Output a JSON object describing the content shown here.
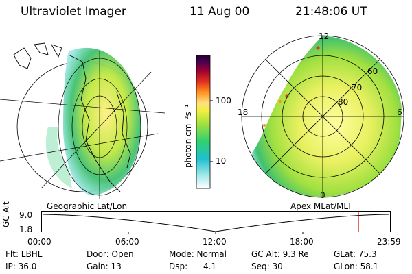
{
  "header": {
    "instrument": "Ultraviolet Imager",
    "date": "11 Aug 00",
    "time": "21:48:06 UT"
  },
  "left_panel": {
    "caption": "Geographic Lat/Lon"
  },
  "right_panel": {
    "caption": "Apex MLat/MLT",
    "mlt_labels": [
      "12",
      "18",
      "6",
      "0"
    ],
    "lat_labels": [
      "60",
      "70",
      "80"
    ]
  },
  "colorbar": {
    "unit_label": "photon cm⁻²s⁻¹",
    "ticks": [
      "100",
      "10"
    ],
    "colors": [
      "#ffffff",
      "#a0e8e8",
      "#20c0d0",
      "#30d070",
      "#a0e040",
      "#f0f040",
      "#ffe080",
      "#ff9020",
      "#e03020",
      "#a00030",
      "#500050",
      "#200030"
    ]
  },
  "altitude_plot": {
    "ylabel": "GC Alt",
    "y_ticks": [
      "9.0",
      "1.8"
    ],
    "x_ticks": [
      "00:00",
      "06:00",
      "12:00",
      "18:00",
      "23:59"
    ]
  },
  "info": {
    "flt": "Flt: LBHL",
    "ip": "IP: 36.0",
    "door": "Door: Open",
    "gain": "Gain: 13",
    "mode": "Mode: Normal",
    "dsp": "Dsp:      4.1",
    "gc_alt": "GC Alt: 9.3 Re",
    "seq": "Seq: 30",
    "glat": "GLat: 75.3",
    "glon": "GLon: 58.1"
  }
}
